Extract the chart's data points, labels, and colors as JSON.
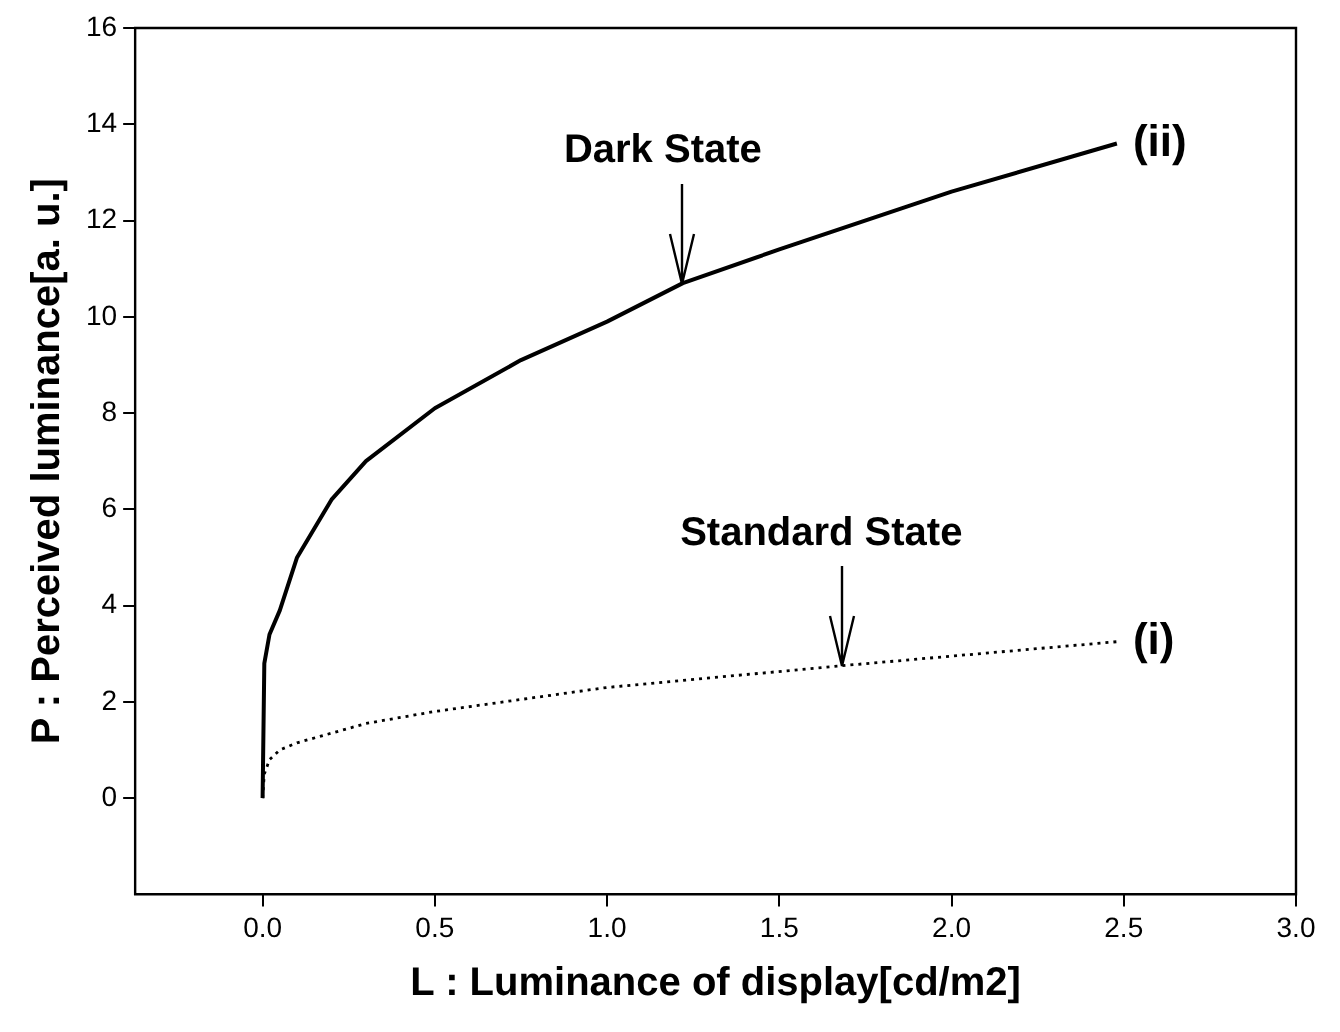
{
  "chart_data": {
    "type": "line",
    "xlabel": "L : Luminance of display[cd/m2]",
    "ylabel": "P : Perceived luminance[a. u.]",
    "xlim": [
      -0.37,
      3.0
    ],
    "xticks": [
      {
        "value": 0,
        "label": "0.0"
      },
      {
        "value": 0.5,
        "label": "0.5"
      },
      {
        "value": 1,
        "label": "1.0"
      },
      {
        "value": 1.5,
        "label": "1.5"
      },
      {
        "value": 2,
        "label": "2.0"
      },
      {
        "value": 2.5,
        "label": "2.5"
      },
      {
        "value": 3,
        "label": "3.0"
      }
    ],
    "ylim": [
      -2,
      16
    ],
    "yticks": [
      0,
      2,
      4,
      6,
      8,
      10,
      12,
      14,
      16
    ],
    "grid": false,
    "legend": false,
    "marker": "none",
    "series": [
      {
        "name": "(ii)",
        "color": "#000000",
        "line_style": "solid",
        "x": [
          0,
          0.005,
          0.02,
          0.05,
          0.1,
          0.2,
          0.3,
          0.5,
          0.75,
          1.0,
          1.22,
          1.5,
          2.0,
          2.48
        ],
        "values": [
          0,
          2.8,
          3.4,
          3.9,
          5.0,
          6.2,
          7.0,
          8.1,
          9.1,
          9.9,
          10.7,
          11.4,
          12.6,
          13.6
        ]
      },
      {
        "name": "(i)",
        "color": "#000000",
        "line_style": "dotted",
        "x": [
          0,
          0.005,
          0.02,
          0.05,
          0.1,
          0.3,
          0.5,
          1.0,
          1.68,
          2.0,
          2.48
        ],
        "values": [
          0,
          0.5,
          0.8,
          1.0,
          1.15,
          1.55,
          1.8,
          2.3,
          2.75,
          2.95,
          3.25
        ]
      }
    ],
    "annotations": [
      {
        "text": "Dark State",
        "x": 1.22,
        "y": 10.7
      },
      {
        "text": "Standard State",
        "x": 1.68,
        "y": 2.75
      }
    ]
  }
}
